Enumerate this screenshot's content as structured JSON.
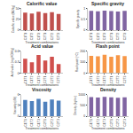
{
  "chart_data": [
    {
      "type": "bar",
      "title": "Calorific value",
      "x_label": "Treatment combinations",
      "y_label": "Calorific value (MJ/kg)",
      "categories": [
        "C1T1",
        "C1T2",
        "C1T3",
        "C2T1",
        "C2T2",
        "C2T3"
      ],
      "values": [
        40,
        38,
        42,
        39,
        41,
        37
      ],
      "color": "#c0504d",
      "ylim": [
        0,
        50
      ],
      "yticks": [
        0,
        25,
        50
      ],
      "grid": false
    },
    {
      "type": "bar",
      "title": "Specific gravity",
      "x_label": "Treatment combinations",
      "y_label": "Specific gravity",
      "categories": [
        "C1T1",
        "C1T2",
        "C1T3",
        "C2T1",
        "C2T2",
        "C2T3"
      ],
      "values": [
        0.88,
        0.86,
        0.89,
        0.87,
        0.85,
        0.88
      ],
      "color": "#8064a2",
      "ylim": [
        0,
        1
      ],
      "yticks": [
        0,
        0.5,
        1
      ],
      "grid": false
    },
    {
      "type": "bar",
      "title": "Acid value",
      "x_label": "Treatment combinations",
      "y_label": "Acid value (mg KOH/g)",
      "categories": [
        "C1T1",
        "C1T2",
        "C1T3",
        "C2T1",
        "C2T2",
        "C2T3"
      ],
      "values": [
        0.4,
        0.3,
        0.5,
        0.35,
        0.45,
        0.25
      ],
      "color": "#d0504d",
      "ylim": [
        0,
        0.6
      ],
      "yticks": [
        0,
        0.3,
        0.6
      ],
      "grid": false
    },
    {
      "type": "bar",
      "title": "Flash point",
      "x_label": "Treatment combinations",
      "y_label": "Flash point (°C)",
      "categories": [
        "C1T1",
        "C1T2",
        "C1T3",
        "C2T1",
        "C2T2",
        "C2T3"
      ],
      "values": [
        160,
        155,
        170,
        150,
        165,
        158
      ],
      "color": "#f79646",
      "ylim": [
        0,
        200
      ],
      "yticks": [
        0,
        100,
        200
      ],
      "grid": false
    },
    {
      "type": "bar",
      "title": "Viscosity",
      "x_label": "Treatment combinations",
      "y_label": "Viscosity (cSt)",
      "categories": [
        "C1T1",
        "C1T2",
        "C1T3",
        "C2T1",
        "C2T2",
        "C2T3"
      ],
      "values": [
        4.5,
        4.2,
        4.8,
        4.0,
        4.6,
        4.3
      ],
      "color": "#4f81bd",
      "ylim": [
        0,
        6
      ],
      "yticks": [
        0,
        3,
        6
      ],
      "grid": false
    },
    {
      "type": "bar",
      "title": "Density",
      "x_label": "Treatment combinations",
      "y_label": "Density (kg/m³)",
      "categories": [
        "C1T1",
        "C1T2",
        "C1T3",
        "C2T1",
        "C2T2",
        "C2T3"
      ],
      "values": [
        880,
        860,
        890,
        870,
        850,
        875
      ],
      "color": "#8064a2",
      "ylim": [
        0,
        1000
      ],
      "yticks": [
        0,
        500,
        1000
      ],
      "grid": false
    }
  ]
}
